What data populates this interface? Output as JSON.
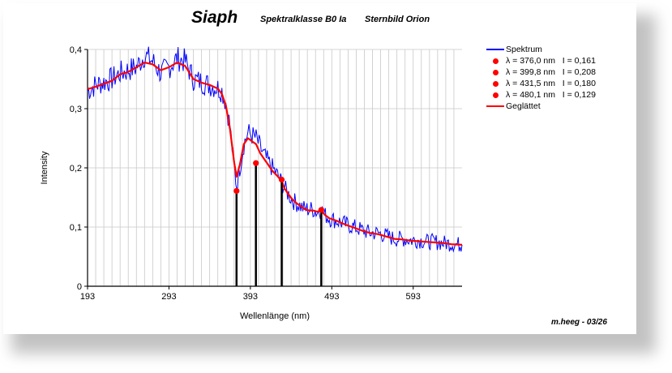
{
  "header": {
    "title": "Siaph",
    "subtitle_class": "Spektralklasse B0 Ia",
    "subtitle_constellation": "Sternbild Orion"
  },
  "credit": "m.heeg - 03/26",
  "colors": {
    "spectrum": "#0000ff",
    "smoothed": "#ff0000",
    "markers": "#ff0000",
    "grid": "#c8c8c8"
  },
  "legend": {
    "placement": "right",
    "items": [
      {
        "kind": "line",
        "color": "#0000ff",
        "label": "Spektrum"
      },
      {
        "kind": "dot",
        "color": "#ff0000",
        "label": "λ = 376,0 nm   I = 0,161"
      },
      {
        "kind": "dot",
        "color": "#ff0000",
        "label": "λ = 399,8 nm   I = 0,208"
      },
      {
        "kind": "dot",
        "color": "#ff0000",
        "label": "λ = 431,5 nm   I = 0,180"
      },
      {
        "kind": "dot",
        "color": "#ff0000",
        "label": "λ = 480,1 nm   I = 0,129"
      },
      {
        "kind": "line",
        "color": "#ff0000",
        "label": "Geglättet"
      }
    ]
  },
  "chart_data": {
    "type": "line",
    "xlabel": "Wellenlänge (nm)",
    "ylabel": "Intensity",
    "xlim": [
      193,
      653
    ],
    "ylim": [
      0,
      0.4
    ],
    "x_ticks": [
      193,
      293,
      393,
      493,
      593
    ],
    "y_ticks": [
      0,
      0.1,
      0.2,
      0.3,
      0.4
    ],
    "y_tick_labels": [
      "0",
      "0,1",
      "0,2",
      "0,3",
      "0,4"
    ],
    "grid": true,
    "series": [
      {
        "name": "Spektrum",
        "x": [
          193,
          203,
          213,
          223,
          233,
          243,
          253,
          263,
          273,
          283,
          293,
          303,
          313,
          323,
          333,
          343,
          353,
          358,
          363,
          368,
          373,
          376,
          380,
          385,
          390,
          395,
          400,
          405,
          410,
          415,
          420,
          425,
          431.5,
          435,
          440,
          445,
          450,
          455,
          460,
          465,
          470,
          475,
          480.1,
          485,
          490,
          500,
          510,
          520,
          530,
          540,
          550,
          560,
          570,
          580,
          590,
          600,
          610,
          620,
          630,
          640,
          653
        ],
        "y": [
          0.33,
          0.34,
          0.345,
          0.35,
          0.36,
          0.365,
          0.37,
          0.39,
          0.38,
          0.36,
          0.37,
          0.385,
          0.38,
          0.35,
          0.345,
          0.34,
          0.335,
          0.33,
          0.31,
          0.27,
          0.2,
          0.17,
          0.2,
          0.24,
          0.26,
          0.255,
          0.25,
          0.235,
          0.22,
          0.21,
          0.2,
          0.19,
          0.175,
          0.165,
          0.155,
          0.145,
          0.14,
          0.135,
          0.13,
          0.13,
          0.13,
          0.125,
          0.13,
          0.12,
          0.115,
          0.11,
          0.105,
          0.1,
          0.095,
          0.09,
          0.09,
          0.085,
          0.08,
          0.08,
          0.078,
          0.078,
          0.075,
          0.075,
          0.073,
          0.072,
          0.07
        ]
      },
      {
        "name": "Geglättet",
        "x": [
          193,
          203,
          213,
          223,
          233,
          243,
          253,
          263,
          273,
          283,
          293,
          303,
          313,
          323,
          333,
          343,
          353,
          358,
          363,
          368,
          373,
          376,
          380,
          385,
          390,
          395,
          400,
          405,
          410,
          415,
          420,
          425,
          431.5,
          435,
          440,
          445,
          450,
          455,
          460,
          465,
          470,
          475,
          480.1,
          485,
          490,
          500,
          510,
          520,
          530,
          540,
          550,
          560,
          570,
          580,
          590,
          600,
          610,
          620,
          630,
          640,
          653
        ],
        "y": [
          0.333,
          0.337,
          0.342,
          0.347,
          0.358,
          0.362,
          0.37,
          0.378,
          0.375,
          0.365,
          0.37,
          0.378,
          0.372,
          0.35,
          0.344,
          0.34,
          0.334,
          0.325,
          0.305,
          0.265,
          0.21,
          0.185,
          0.205,
          0.24,
          0.25,
          0.245,
          0.24,
          0.225,
          0.215,
          0.205,
          0.195,
          0.188,
          0.178,
          0.165,
          0.155,
          0.146,
          0.14,
          0.135,
          0.13,
          0.128,
          0.128,
          0.126,
          0.127,
          0.12,
          0.115,
          0.11,
          0.104,
          0.099,
          0.094,
          0.09,
          0.088,
          0.084,
          0.08,
          0.079,
          0.077,
          0.076,
          0.075,
          0.074,
          0.073,
          0.071,
          0.07
        ]
      }
    ],
    "markers": [
      {
        "x": 376.0,
        "y": 0.161
      },
      {
        "x": 399.8,
        "y": 0.208
      },
      {
        "x": 431.5,
        "y": 0.18
      },
      {
        "x": 480.1,
        "y": 0.129
      }
    ]
  }
}
